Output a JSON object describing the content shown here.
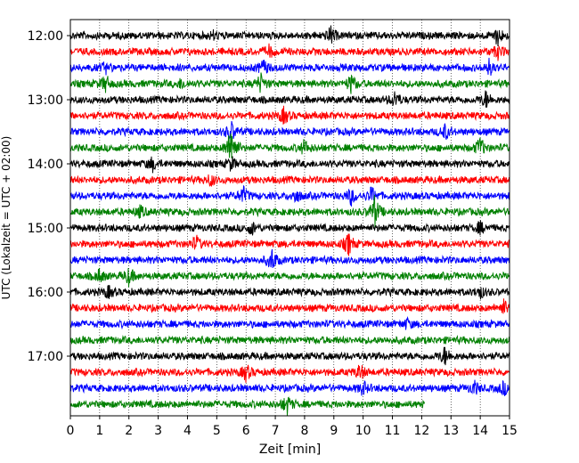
{
  "chart_data": {
    "type": "line",
    "title": "",
    "xlabel": "Zeit  [min]",
    "ylabel": "UTC (Lokalzeit = UTC + 02:00)",
    "xlim": [
      0,
      15
    ],
    "x_ticks": [
      0,
      1,
      2,
      3,
      4,
      5,
      6,
      7,
      8,
      9,
      10,
      11,
      12,
      13,
      14,
      15
    ],
    "y_ticks": [
      "12:00",
      "13:00",
      "14:00",
      "15:00",
      "16:00",
      "17:00"
    ],
    "grid": "vertical dotted",
    "colors": [
      "#000000",
      "#ff0000",
      "#0000ff",
      "#008000"
    ],
    "traces": [
      {
        "start": "12:00",
        "color": "#000000",
        "end_min": 15,
        "events": [
          {
            "t": 8.9,
            "a": 9
          },
          {
            "t": 14.6,
            "a": 10
          },
          {
            "t": 4.9,
            "a": 4
          }
        ]
      },
      {
        "start": "12:15",
        "color": "#ff0000",
        "end_min": 15,
        "events": [
          {
            "t": 6.8,
            "a": 6
          },
          {
            "t": 14.6,
            "a": 7
          }
        ]
      },
      {
        "start": "12:30",
        "color": "#0000ff",
        "end_min": 15,
        "events": [
          {
            "t": 6.6,
            "a": 8
          },
          {
            "t": 14.3,
            "a": 8
          },
          {
            "t": 1.2,
            "a": 5
          }
        ]
      },
      {
        "start": "12:45",
        "color": "#008000",
        "end_min": 15,
        "events": [
          {
            "t": 1.2,
            "a": 9
          },
          {
            "t": 6.5,
            "a": 10
          },
          {
            "t": 9.6,
            "a": 10
          },
          {
            "t": 3.8,
            "a": 5
          }
        ]
      },
      {
        "start": "13:00",
        "color": "#000000",
        "end_min": 15,
        "events": [
          {
            "t": 11.1,
            "a": 9
          },
          {
            "t": 14.2,
            "a": 9
          }
        ]
      },
      {
        "start": "13:15",
        "color": "#ff0000",
        "end_min": 15,
        "events": [
          {
            "t": 7.3,
            "a": 9
          }
        ]
      },
      {
        "start": "13:30",
        "color": "#0000ff",
        "end_min": 15,
        "events": [
          {
            "t": 5.5,
            "a": 10
          },
          {
            "t": 12.8,
            "a": 8
          }
        ]
      },
      {
        "start": "13:45",
        "color": "#008000",
        "end_min": 15,
        "events": [
          {
            "t": 5.5,
            "a": 26
          },
          {
            "t": 8.0,
            "a": 8
          },
          {
            "t": 14.0,
            "a": 11
          }
        ]
      },
      {
        "start": "14:00",
        "color": "#000000",
        "end_min": 15,
        "events": [
          {
            "t": 2.8,
            "a": 7
          },
          {
            "t": 5.5,
            "a": 7
          }
        ]
      },
      {
        "start": "14:15",
        "color": "#ff0000",
        "end_min": 15,
        "events": [
          {
            "t": 4.8,
            "a": 6
          }
        ]
      },
      {
        "start": "14:30",
        "color": "#0000ff",
        "end_min": 15,
        "events": [
          {
            "t": 5.9,
            "a": 9
          },
          {
            "t": 7.7,
            "a": 7
          },
          {
            "t": 9.6,
            "a": 9
          },
          {
            "t": 10.3,
            "a": 9
          }
        ]
      },
      {
        "start": "14:45",
        "color": "#008000",
        "end_min": 15,
        "events": [
          {
            "t": 10.4,
            "a": 17
          },
          {
            "t": 2.4,
            "a": 6
          }
        ]
      },
      {
        "start": "15:00",
        "color": "#000000",
        "end_min": 15,
        "events": [
          {
            "t": 6.2,
            "a": 7
          },
          {
            "t": 14.0,
            "a": 6
          }
        ]
      },
      {
        "start": "15:15",
        "color": "#ff0000",
        "end_min": 15,
        "events": [
          {
            "t": 9.5,
            "a": 12
          },
          {
            "t": 4.3,
            "a": 8
          }
        ]
      },
      {
        "start": "15:30",
        "color": "#0000ff",
        "end_min": 15,
        "events": [
          {
            "t": 6.9,
            "a": 12
          }
        ]
      },
      {
        "start": "15:45",
        "color": "#008000",
        "end_min": 15,
        "events": [
          {
            "t": 1.0,
            "a": 7
          },
          {
            "t": 2.0,
            "a": 9
          }
        ]
      },
      {
        "start": "16:00",
        "color": "#000000",
        "end_min": 15,
        "events": [
          {
            "t": 1.3,
            "a": 6
          },
          {
            "t": 14.0,
            "a": 6
          }
        ]
      },
      {
        "start": "16:15",
        "color": "#ff0000",
        "end_min": 15,
        "events": [
          {
            "t": 14.8,
            "a": 8
          }
        ]
      },
      {
        "start": "16:30",
        "color": "#0000ff",
        "end_min": 15,
        "events": [
          {
            "t": 11.5,
            "a": 5
          }
        ]
      },
      {
        "start": "16:45",
        "color": "#008000",
        "end_min": 15,
        "events": []
      },
      {
        "start": "17:00",
        "color": "#000000",
        "end_min": 15,
        "events": [
          {
            "t": 12.8,
            "a": 10
          }
        ]
      },
      {
        "start": "17:15",
        "color": "#ff0000",
        "end_min": 15,
        "events": [
          {
            "t": 6.0,
            "a": 9
          },
          {
            "t": 9.9,
            "a": 8
          }
        ]
      },
      {
        "start": "17:30",
        "color": "#0000ff",
        "end_min": 15,
        "events": [
          {
            "t": 10.0,
            "a": 7
          },
          {
            "t": 13.8,
            "a": 7
          },
          {
            "t": 14.8,
            "a": 7
          }
        ]
      },
      {
        "start": "17:45",
        "color": "#008000",
        "end_min": 12.1,
        "events": [
          {
            "t": 7.4,
            "a": 10
          }
        ]
      }
    ]
  }
}
